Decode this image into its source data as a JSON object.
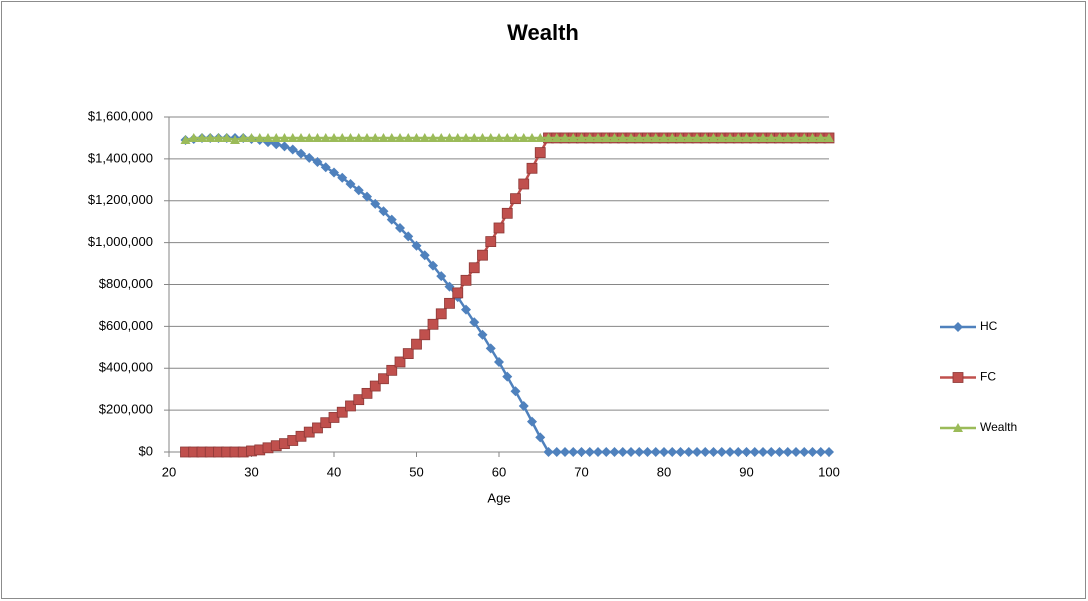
{
  "chart_data": {
    "type": "line",
    "title": "Wealth",
    "x_label": "Age",
    "x": [
      22,
      23,
      24,
      25,
      26,
      27,
      28,
      29,
      30,
      31,
      32,
      33,
      34,
      35,
      36,
      37,
      38,
      39,
      40,
      41,
      42,
      43,
      44,
      45,
      46,
      47,
      48,
      49,
      50,
      51,
      52,
      53,
      54,
      55,
      56,
      57,
      58,
      59,
      60,
      61,
      62,
      63,
      64,
      65,
      66,
      67,
      68,
      69,
      70,
      71,
      72,
      73,
      74,
      75,
      76,
      77,
      78,
      79,
      80,
      81,
      82,
      83,
      84,
      85,
      86,
      87,
      88,
      89,
      90,
      91,
      92,
      93,
      94,
      95,
      96,
      97,
      98,
      99,
      100
    ],
    "series": [
      {
        "name": "HC",
        "color": "#4f81bd",
        "marker": "diamond",
        "values": [
          1490000,
          1495000,
          1500000,
          1500000,
          1500000,
          1500000,
          1500000,
          1500000,
          1495000,
          1490000,
          1480000,
          1470000,
          1460000,
          1445000,
          1425000,
          1405000,
          1385000,
          1360000,
          1335000,
          1310000,
          1280000,
          1250000,
          1220000,
          1185000,
          1150000,
          1110000,
          1070000,
          1030000,
          985000,
          940000,
          890000,
          840000,
          790000,
          740000,
          680000,
          620000,
          560000,
          495000,
          430000,
          360000,
          290000,
          220000,
          145000,
          70000,
          0,
          0,
          0,
          0,
          0,
          0,
          0,
          0,
          0,
          0,
          0,
          0,
          0,
          0,
          0,
          0,
          0,
          0,
          0,
          0,
          0,
          0,
          0,
          0,
          0,
          0,
          0,
          0,
          0,
          0,
          0,
          0,
          0,
          0,
          0
        ]
      },
      {
        "name": "FC",
        "color": "#c0504d",
        "marker": "square",
        "values": [
          0,
          0,
          0,
          0,
          0,
          0,
          0,
          0,
          5000,
          10000,
          20000,
          30000,
          40000,
          55000,
          75000,
          95000,
          115000,
          140000,
          165000,
          190000,
          220000,
          250000,
          280000,
          315000,
          350000,
          390000,
          430000,
          470000,
          515000,
          560000,
          610000,
          660000,
          710000,
          760000,
          820000,
          880000,
          940000,
          1005000,
          1070000,
          1140000,
          1210000,
          1280000,
          1355000,
          1430000,
          1500000,
          1500000,
          1500000,
          1500000,
          1500000,
          1500000,
          1500000,
          1500000,
          1500000,
          1500000,
          1500000,
          1500000,
          1500000,
          1500000,
          1500000,
          1500000,
          1500000,
          1500000,
          1500000,
          1500000,
          1500000,
          1500000,
          1500000,
          1500000,
          1500000,
          1500000,
          1500000,
          1500000,
          1500000,
          1500000,
          1500000,
          1500000,
          1500000,
          1500000,
          1500000
        ]
      },
      {
        "name": "Wealth",
        "color": "#9bbb59",
        "marker": "triangle",
        "values": [
          1490000,
          1500000,
          1500000,
          1500000,
          1500000,
          1500000,
          1490000,
          1500000,
          1500000,
          1500000,
          1500000,
          1500000,
          1500000,
          1500000,
          1500000,
          1500000,
          1500000,
          1500000,
          1500000,
          1500000,
          1500000,
          1500000,
          1500000,
          1500000,
          1500000,
          1500000,
          1500000,
          1500000,
          1500000,
          1500000,
          1500000,
          1500000,
          1500000,
          1500000,
          1500000,
          1500000,
          1500000,
          1500000,
          1500000,
          1500000,
          1500000,
          1500000,
          1500000,
          1500000,
          1500000,
          1500000,
          1500000,
          1500000,
          1500000,
          1500000,
          1500000,
          1500000,
          1500000,
          1500000,
          1500000,
          1500000,
          1500000,
          1500000,
          1500000,
          1500000,
          1500000,
          1500000,
          1500000,
          1500000,
          1500000,
          1500000,
          1500000,
          1500000,
          1500000,
          1500000,
          1500000,
          1500000,
          1500000,
          1500000,
          1500000,
          1500000,
          1500000,
          1500000,
          1500000
        ]
      }
    ],
    "xlim": [
      20,
      100
    ],
    "xticks": [
      20,
      30,
      40,
      50,
      60,
      70,
      80,
      90,
      100
    ],
    "ylim": [
      0,
      1600000
    ],
    "yticks": [
      {
        "value": 0,
        "label": "$0"
      },
      {
        "value": 200000,
        "label": "$200,000"
      },
      {
        "value": 400000,
        "label": "$400,000"
      },
      {
        "value": 600000,
        "label": "$600,000"
      },
      {
        "value": 800000,
        "label": "$800,000"
      },
      {
        "value": 1000000,
        "label": "$1,000,000"
      },
      {
        "value": 1200000,
        "label": "$1,200,000"
      },
      {
        "value": 1400000,
        "label": "$1,400,000"
      },
      {
        "value": 1600000,
        "label": "$1,600,000"
      }
    ],
    "grid": true,
    "legend": "right"
  }
}
